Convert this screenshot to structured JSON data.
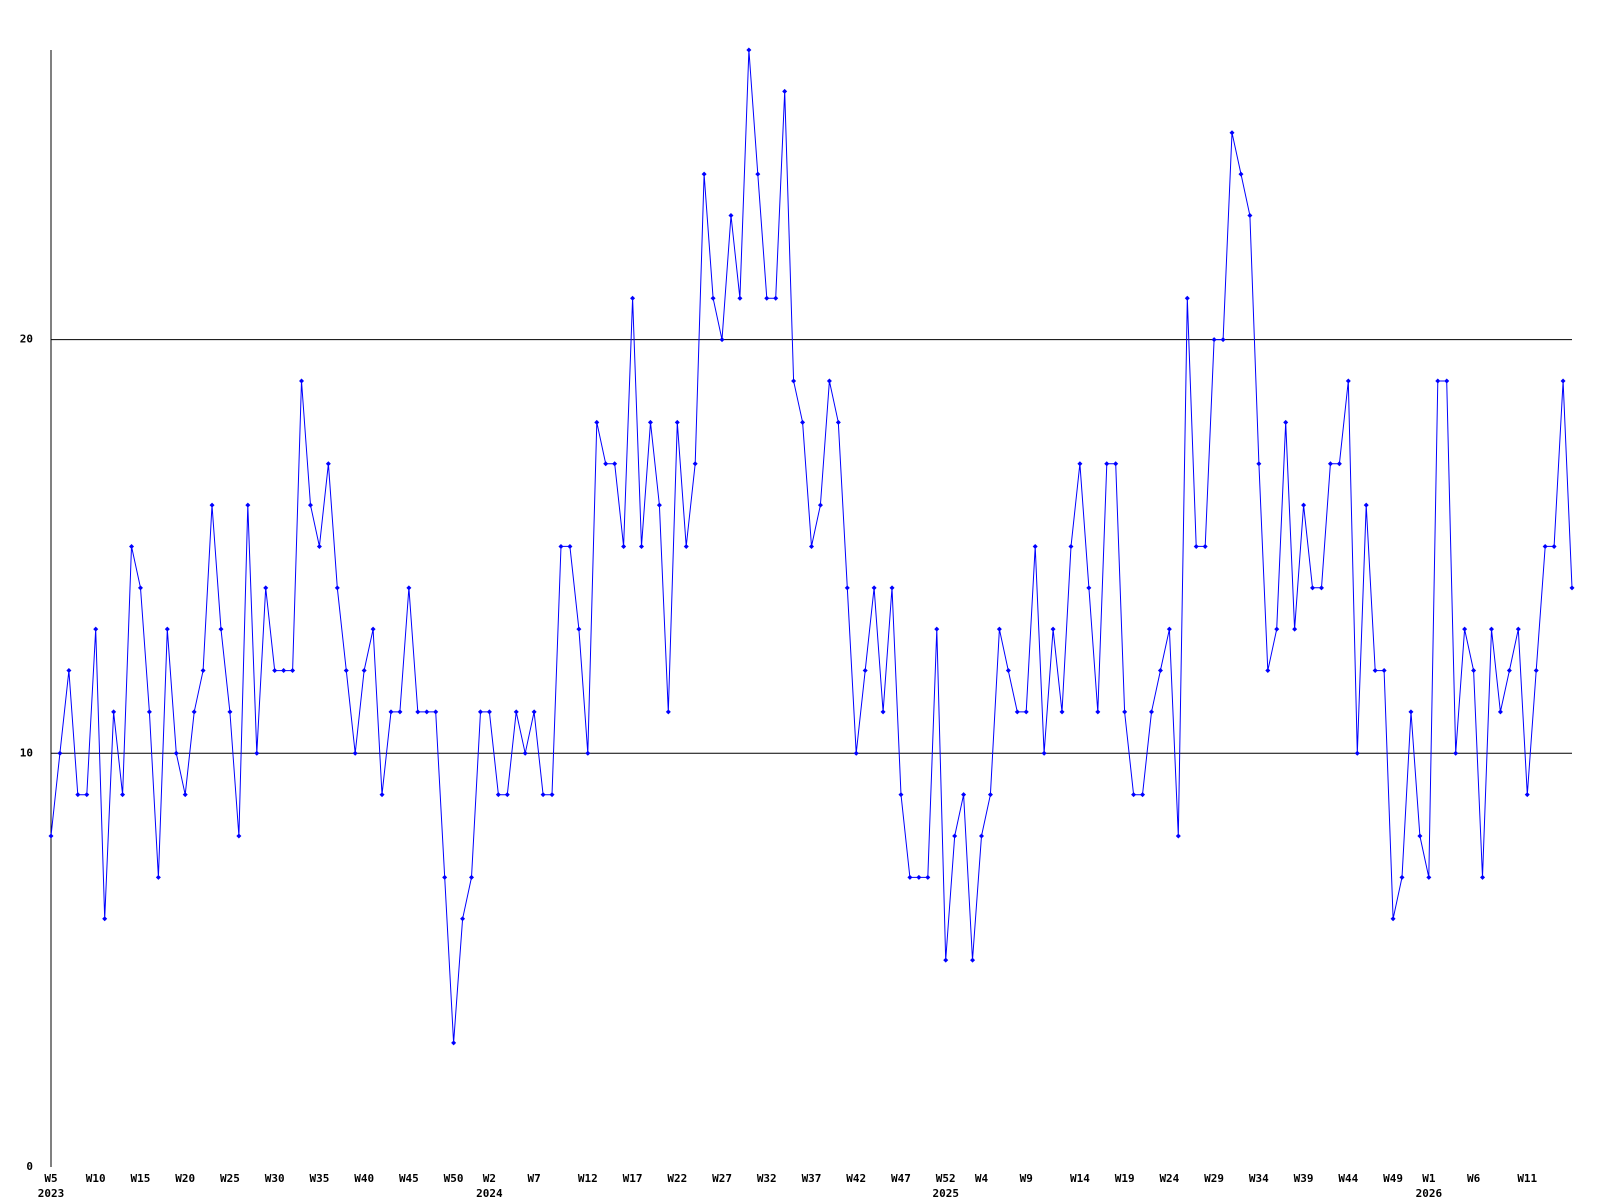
{
  "chart_data": {
    "type": "line",
    "categories": [
      "W5",
      null,
      null,
      null,
      null,
      "W10",
      null,
      null,
      null,
      null,
      "W15",
      null,
      null,
      null,
      null,
      "W20",
      null,
      null,
      null,
      null,
      "W25",
      null,
      null,
      null,
      null,
      "W30",
      null,
      null,
      null,
      null,
      "W35",
      null,
      null,
      null,
      null,
      "W40",
      null,
      null,
      null,
      null,
      "W45",
      null,
      null,
      null,
      null,
      "W50",
      null,
      null,
      null,
      "W2",
      null,
      null,
      null,
      null,
      "W7",
      null,
      null,
      null,
      null,
      null,
      "W12",
      null,
      null,
      null,
      null,
      "W17",
      null,
      null,
      null,
      null,
      "W22",
      null,
      null,
      null,
      null,
      "W27",
      null,
      null,
      null,
      null,
      "W32",
      null,
      null,
      null,
      null,
      "W37",
      null,
      null,
      null,
      null,
      "W42",
      null,
      null,
      null,
      null,
      "W47",
      null,
      null,
      null,
      null,
      "W52",
      null,
      null,
      null,
      "W4",
      null,
      null,
      null,
      null,
      "W9",
      null,
      null,
      null,
      null,
      null,
      "W14",
      null,
      null,
      null,
      null,
      "W19",
      null,
      null,
      null,
      null,
      "W24",
      null,
      null,
      null,
      null,
      "W29",
      null,
      null,
      null,
      null,
      "W34",
      null,
      null,
      null,
      null,
      "W39",
      null,
      null,
      null,
      null,
      "W44",
      null,
      null,
      null,
      null,
      "W49",
      null,
      null,
      null,
      "W1",
      null,
      null,
      null,
      null,
      "W6",
      null,
      null,
      null,
      null,
      null,
      "W11",
      null,
      null,
      null,
      null,
      null
    ],
    "year_labels": [
      "2023",
      null,
      null,
      null,
      null,
      null,
      null,
      null,
      null,
      null,
      null,
      null,
      null,
      null,
      null,
      null,
      null,
      null,
      null,
      null,
      null,
      null,
      null,
      null,
      null,
      null,
      null,
      null,
      null,
      null,
      null,
      null,
      null,
      null,
      null,
      null,
      null,
      null,
      null,
      null,
      null,
      null,
      null,
      null,
      null,
      null,
      null,
      null,
      null,
      "2024",
      null,
      null,
      null,
      null,
      null,
      null,
      null,
      null,
      null,
      null,
      null,
      null,
      null,
      null,
      null,
      null,
      null,
      null,
      null,
      null,
      null,
      null,
      null,
      null,
      null,
      null,
      null,
      null,
      null,
      null,
      null,
      null,
      null,
      null,
      null,
      null,
      null,
      null,
      null,
      null,
      null,
      null,
      null,
      null,
      null,
      null,
      null,
      null,
      null,
      null,
      "2025",
      null,
      null,
      null,
      null,
      null,
      null,
      null,
      null,
      null,
      null,
      null,
      null,
      null,
      null,
      null,
      null,
      null,
      null,
      null,
      null,
      null,
      null,
      null,
      null,
      null,
      null,
      null,
      null,
      null,
      null,
      null,
      null,
      null,
      null,
      null,
      null,
      null,
      null,
      null,
      null,
      null,
      null,
      null,
      null,
      null,
      null,
      null,
      null,
      null,
      null,
      null,
      null,
      null,
      "2026",
      null,
      null,
      null,
      null,
      null,
      null,
      null,
      null,
      null,
      null,
      null,
      null,
      null,
      null,
      null,
      null
    ],
    "values": [
      8,
      10,
      12,
      9,
      9,
      13,
      6,
      11,
      9,
      15,
      14,
      11,
      7,
      13,
      10,
      9,
      11,
      12,
      16,
      13,
      11,
      8,
      16,
      10,
      14,
      12,
      12,
      12,
      19,
      16,
      15,
      17,
      14,
      12,
      10,
      12,
      13,
      9,
      11,
      11,
      14,
      11,
      11,
      11,
      7,
      3,
      6,
      7,
      11,
      11,
      9,
      9,
      11,
      10,
      11,
      9,
      9,
      15,
      15,
      13,
      10,
      18,
      17,
      17,
      15,
      21,
      15,
      18,
      16,
      11,
      18,
      15,
      17,
      24,
      21,
      20,
      23,
      21,
      27,
      24,
      21,
      21,
      26,
      19,
      18,
      15,
      16,
      19,
      18,
      14,
      10,
      12,
      14,
      11,
      14,
      9,
      7,
      7,
      7,
      13,
      5,
      8,
      9,
      5,
      8,
      9,
      13,
      12,
      11,
      11,
      15,
      10,
      13,
      11,
      15,
      17,
      14,
      11,
      17,
      17,
      11,
      9,
      9,
      11,
      12,
      13,
      8,
      21,
      15,
      15,
      20,
      20,
      25,
      24,
      23,
      17,
      12,
      13,
      18,
      13,
      16,
      14,
      14,
      17,
      17,
      19,
      10,
      16,
      12,
      12,
      6,
      7,
      11,
      8,
      7,
      19,
      19,
      10,
      13,
      12,
      7,
      13,
      11,
      12,
      13,
      9,
      12,
      15,
      15,
      19,
      14
    ],
    "color": "#0000ff",
    "ylim": [
      0,
      27
    ],
    "yticks": [
      0,
      10,
      20
    ],
    "grid": true
  }
}
